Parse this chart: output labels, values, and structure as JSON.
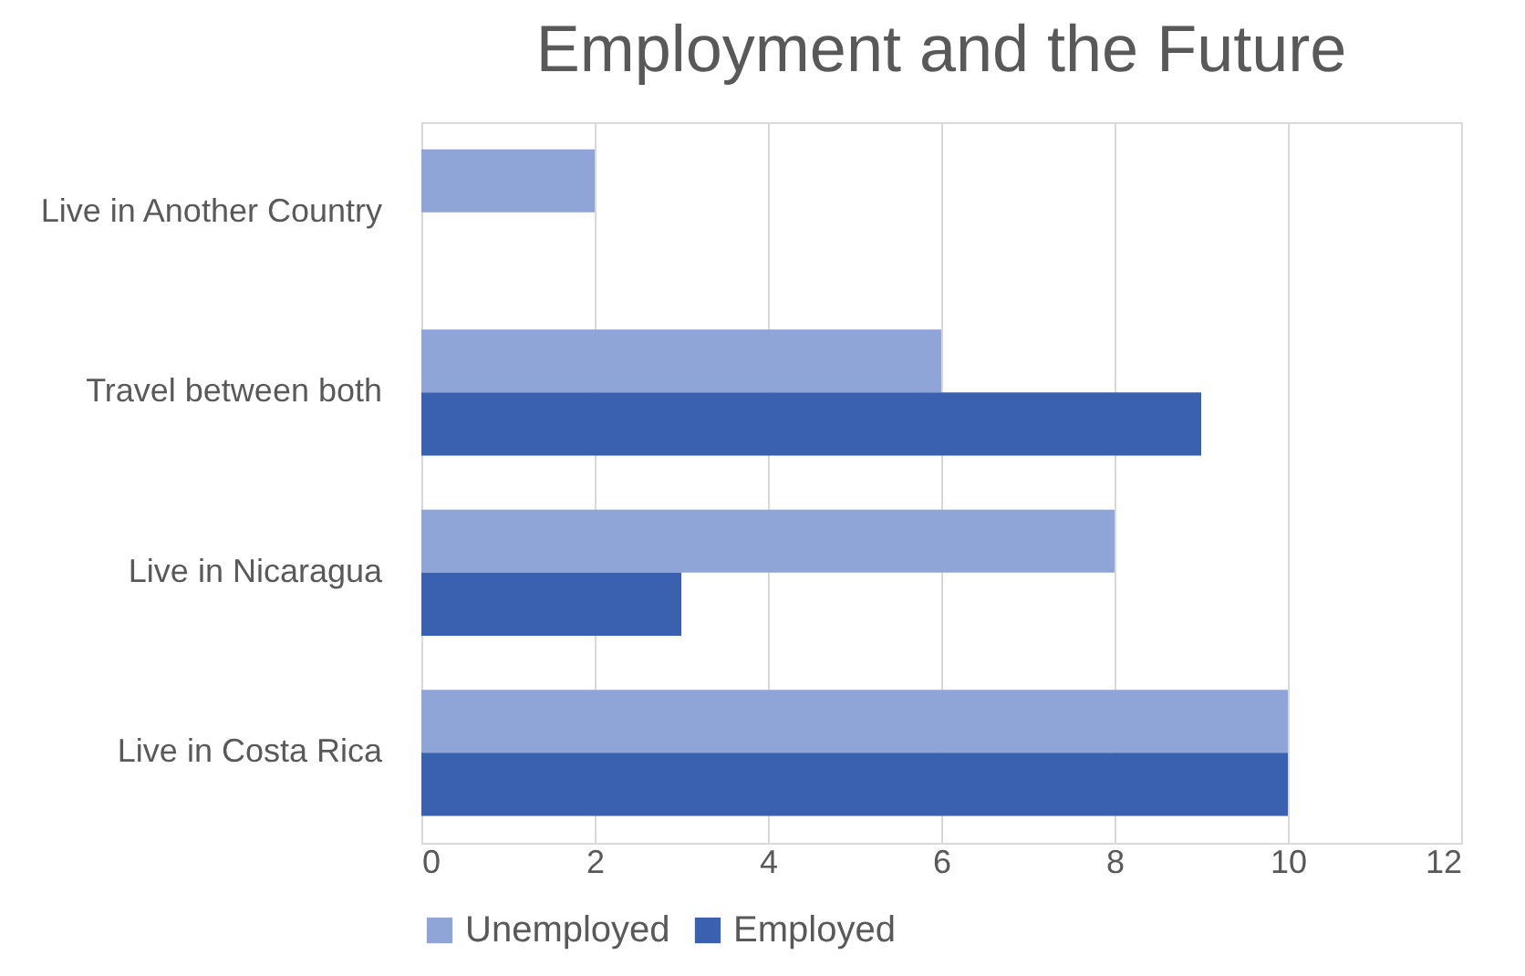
{
  "chart_data": {
    "type": "bar",
    "title": "Employment and the Future",
    "orientation": "horizontal",
    "categories": [
      "Live in Another Country",
      "Travel between both",
      "Live in Nicaragua",
      "Live in Costa Rica"
    ],
    "series": [
      {
        "name": "Unemployed",
        "color": "#8fa5d8",
        "values": [
          2,
          6,
          8,
          10
        ]
      },
      {
        "name": "Employed",
        "color": "#3a60b0",
        "values": [
          0,
          9,
          3,
          10
        ]
      }
    ],
    "xlim": [
      0,
      12
    ],
    "xticks": [
      0,
      2,
      4,
      6,
      8,
      10,
      12
    ],
    "grid": "x",
    "legend": "bottom"
  }
}
